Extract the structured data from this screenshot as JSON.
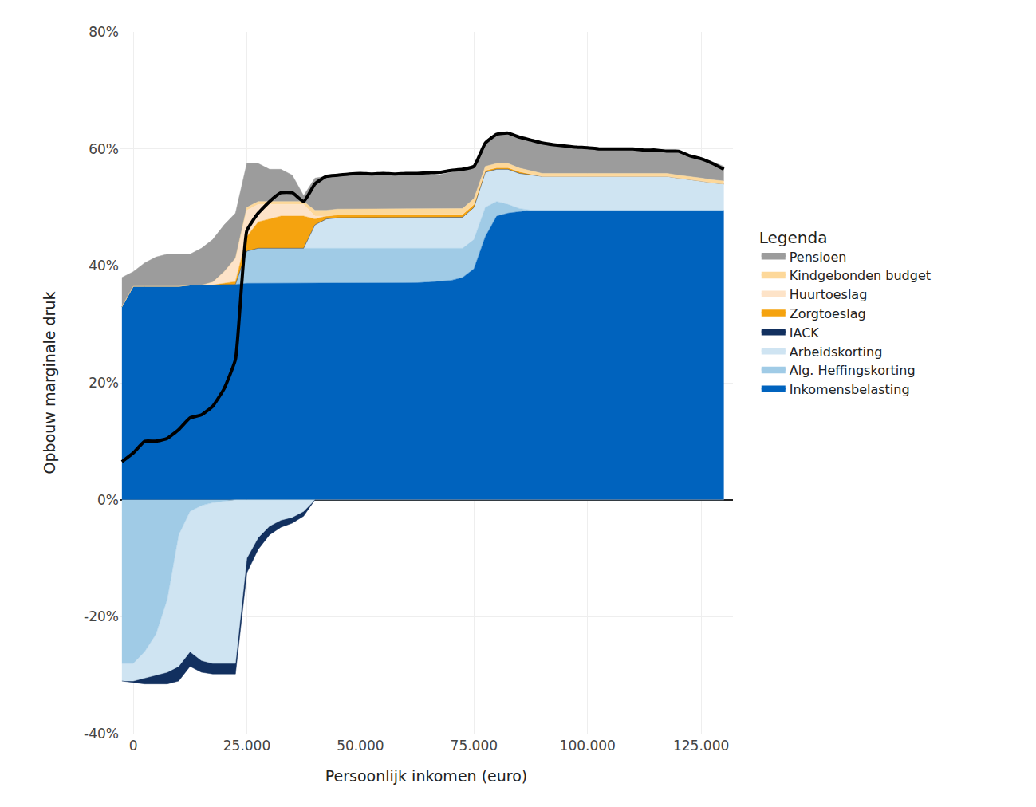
{
  "chart_data": {
    "type": "area",
    "stacked": true,
    "x_label": "Persoonlijk inkomen (euro)",
    "y_label": "Opbouw marginale druk",
    "legend_title": "Legenda",
    "legend": "right",
    "grid": true,
    "x": [
      -2500,
      0,
      2500,
      5000,
      7500,
      10000,
      12500,
      15000,
      17500,
      20000,
      22500,
      25000,
      27500,
      30000,
      32500,
      35000,
      37500,
      40000,
      42500,
      45000,
      47500,
      50000,
      52500,
      55000,
      57500,
      60000,
      62500,
      65000,
      67500,
      70000,
      72500,
      75000,
      77500,
      80000,
      82500,
      85000,
      87500,
      90000,
      92500,
      95000,
      97500,
      100000,
      102500,
      105000,
      107500,
      110000,
      112500,
      115000,
      117500,
      120000,
      122500,
      125000,
      127500,
      130000
    ],
    "xlim": [
      -3000,
      132000
    ],
    "xticks": [
      0,
      {
        "value": 25000,
        "label": "25.000"
      },
      {
        "value": 50000,
        "label": "50.000"
      },
      {
        "value": 75000,
        "label": "75.000"
      },
      {
        "value": 100000,
        "label": "100.000"
      },
      {
        "value": 125000,
        "label": "125.000"
      }
    ],
    "ylim": [
      -40,
      80
    ],
    "yticks": [
      {
        "value": -40,
        "label": "-40%"
      },
      {
        "value": -20,
        "label": "-20%"
      },
      {
        "value": 0,
        "label": "0%"
      },
      {
        "value": 20,
        "label": "20%"
      },
      {
        "value": 40,
        "label": "40%"
      },
      {
        "value": 60,
        "label": "60%"
      },
      {
        "value": 80,
        "label": "80%"
      }
    ],
    "series": [
      {
        "name": "Inkomensbelasting",
        "type": "area",
        "color": "#0063be",
        "values": [
          33,
          36.5,
          36.5,
          36.5,
          36.5,
          36.5,
          36.7,
          36.7,
          36.7,
          36.7,
          36.8,
          37,
          37,
          37,
          37,
          37,
          37,
          37,
          37,
          37,
          37,
          37,
          37,
          37,
          37,
          37,
          37.1,
          37.2,
          37.3,
          37.5,
          38,
          39.5,
          45,
          48.5,
          49,
          49.3,
          49.5,
          49.5,
          49.5,
          49.5,
          49.5,
          49.5,
          49.5,
          49.5,
          49.5,
          49.5,
          49.5,
          49.5,
          49.5,
          49.5,
          49.5,
          49.5,
          49.5,
          49.5
        ]
      },
      {
        "name": "Alg. Heffingskorting",
        "type": "area",
        "color": "#a0cbe6",
        "values": [
          -28,
          -28,
          -26,
          -23,
          -17,
          -6,
          -2,
          -1,
          -0.5,
          -0.2,
          0,
          5.5,
          6,
          6,
          6,
          6,
          6,
          6,
          6,
          6,
          6,
          6,
          6,
          6,
          6,
          6,
          5.9,
          5.8,
          5.7,
          5.5,
          5,
          5,
          5,
          2.5,
          1.5,
          0.5,
          0,
          0,
          0,
          0,
          0,
          0,
          0,
          0,
          0,
          0,
          0,
          0,
          0,
          0,
          0,
          0,
          0,
          0
        ]
      },
      {
        "name": "Arbeidskorting",
        "type": "area",
        "color": "#cfe4f2",
        "values": [
          -3,
          -3,
          -4.5,
          -7,
          -12.5,
          -22.5,
          -24,
          -26.5,
          -27.5,
          -27.8,
          -28,
          -10,
          -6.5,
          -4.5,
          -3.5,
          -3,
          -2,
          4,
          5,
          5.2,
          5.2,
          5.2,
          5.2,
          5.2,
          5.2,
          5.2,
          5.2,
          5.2,
          5.2,
          5.2,
          5.3,
          5.5,
          6,
          5.5,
          6,
          6,
          6,
          5.8,
          5.8,
          5.8,
          5.8,
          5.8,
          5.8,
          5.8,
          5.8,
          5.8,
          5.8,
          5.8,
          5.8,
          5.5,
          5.3,
          5,
          4.7,
          4.5
        ]
      },
      {
        "name": "IACK",
        "type": "area",
        "color": "#12305f",
        "values": [
          0,
          -0.3,
          -1,
          -1.5,
          -2,
          -2.5,
          -2.5,
          -2,
          -1.8,
          -1.8,
          -1.8,
          -2.5,
          -2,
          -1.5,
          -1.2,
          -1,
          -0.8,
          0,
          0,
          0,
          0,
          0,
          0,
          0,
          0,
          0,
          0,
          0,
          0,
          0,
          0,
          0,
          0,
          0,
          0,
          0,
          0,
          0,
          0,
          0,
          0,
          0,
          0,
          0,
          0,
          0,
          0,
          0,
          0,
          0,
          0,
          0,
          0,
          0
        ]
      },
      {
        "name": "Zorgtoeslag",
        "type": "area",
        "color": "#f5a30f",
        "values": [
          0,
          0,
          0,
          0,
          0,
          0,
          0,
          0,
          0,
          0.3,
          0.5,
          2.5,
          4.5,
          5,
          5.5,
          5.5,
          5.5,
          1,
          0.5,
          0.5,
          0.5,
          0.5,
          0.5,
          0.5,
          0.5,
          0.5,
          0.5,
          0.5,
          0.5,
          0.5,
          0.5,
          0.5,
          0.3,
          0.3,
          0.3,
          0.3,
          0.2,
          0,
          0,
          0,
          0,
          0,
          0,
          0,
          0,
          0,
          0,
          0,
          0,
          0,
          0,
          0,
          0,
          0
        ]
      },
      {
        "name": "Huurtoeslag",
        "type": "area",
        "color": "#fde3c8",
        "values": [
          0,
          0,
          0,
          0,
          0,
          0,
          0,
          0,
          0.5,
          2,
          4,
          4.5,
          3,
          2.5,
          2,
          2,
          2,
          0.5,
          0,
          0,
          0,
          0,
          0,
          0,
          0,
          0,
          0,
          0,
          0,
          0,
          0,
          0,
          0,
          0,
          0,
          0,
          0,
          0,
          0,
          0,
          0,
          0,
          0,
          0,
          0,
          0,
          0,
          0,
          0,
          0,
          0,
          0,
          0,
          0
        ]
      },
      {
        "name": "Kindgebonden budget",
        "type": "area",
        "color": "#fdd89a",
        "values": [
          0,
          0,
          0,
          0,
          0,
          0,
          0,
          0,
          0,
          0,
          0,
          0.5,
          0.5,
          0.5,
          0.5,
          0.5,
          0.5,
          1,
          1,
          1,
          1,
          1,
          1,
          1,
          1,
          1,
          1,
          1,
          1,
          1,
          1,
          1,
          0.7,
          0.7,
          0.7,
          0.6,
          0.6,
          0.5,
          0.5,
          0.5,
          0.5,
          0.5,
          0.5,
          0.5,
          0.5,
          0.5,
          0.5,
          0.5,
          0.5,
          0.5,
          0.5,
          0.5,
          0.5,
          0.5
        ]
      },
      {
        "name": "Pensioen",
        "type": "area",
        "color": "#9c9c9c",
        "values": [
          5,
          2.5,
          4,
          5,
          5.5,
          5.5,
          5.3,
          6.3,
          7.3,
          8,
          7.7,
          7.5,
          6.5,
          5.5,
          5.5,
          4.5,
          1,
          5.5,
          5.8,
          5.9,
          5.9,
          5.9,
          5.9,
          5.9,
          5.9,
          5.9,
          5.9,
          5.9,
          5.9,
          6.3,
          6.7,
          5.5,
          4,
          5,
          5.2,
          5.3,
          5.2,
          5.2,
          4.9,
          4.7,
          4.5,
          4.4,
          4.2,
          4.2,
          4.2,
          4.2,
          4.0,
          4.0,
          3.8,
          4.1,
          3.7,
          3.5,
          3.1,
          2.5
        ]
      },
      {
        "type": "line",
        "color": "#000000",
        "values": [
          6.5,
          8,
          10,
          10,
          10.5,
          12,
          14,
          14.5,
          16,
          19,
          24,
          46,
          49,
          51,
          52.5,
          52.5,
          51,
          54,
          55.3,
          55.5,
          55.7,
          55.8,
          55.7,
          55.8,
          55.7,
          55.8,
          55.8,
          55.9,
          56,
          56.3,
          56.5,
          57,
          61,
          62.5,
          62.7,
          62,
          61.5,
          61,
          60.7,
          60.5,
          60.3,
          60.2,
          60,
          60,
          60,
          60,
          59.8,
          59.8,
          59.6,
          59.6,
          58.8,
          58.3,
          57.5,
          56.5
        ]
      }
    ]
  }
}
